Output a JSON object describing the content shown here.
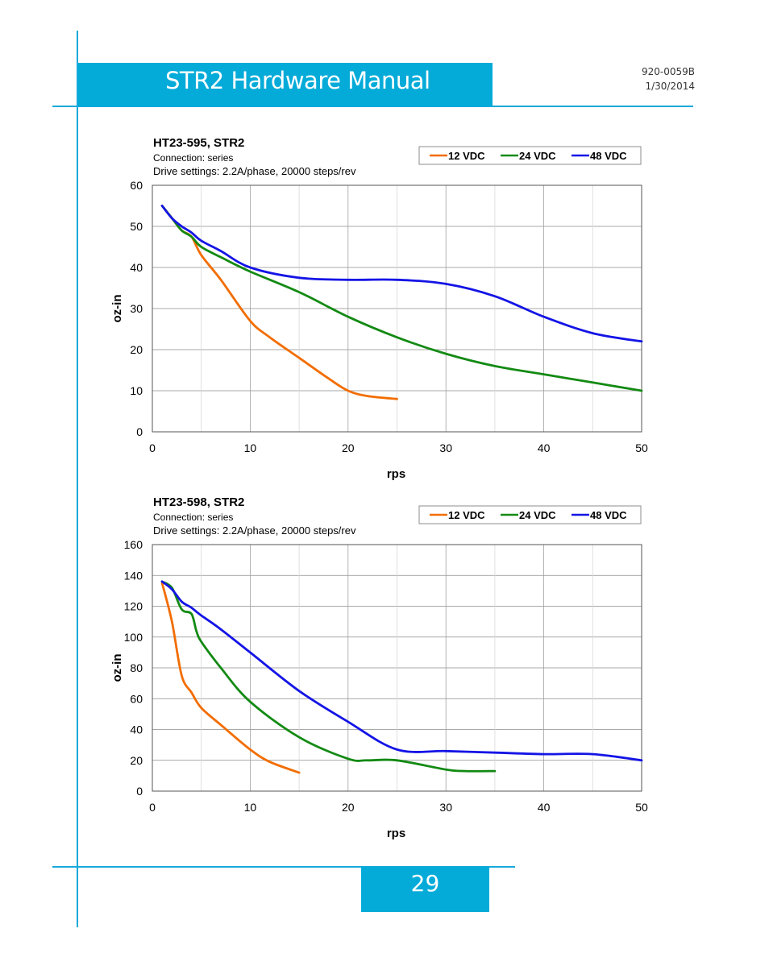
{
  "header": {
    "title": "STR2 Hardware Manual",
    "doc_number": "920-0059B",
    "date": "1/30/2014"
  },
  "footer": {
    "page_number": "29"
  },
  "colors": {
    "accent": "#04abd9",
    "rule": "#16a9da",
    "v12": "#f26d00",
    "v24": "#138a13",
    "v48": "#1414e6"
  },
  "chart_data": [
    {
      "type": "line",
      "title": "HT23-595, STR2",
      "subtitle": "Connection: series",
      "settings": "Drive settings: 2.2A/phase, 20000 steps/rev",
      "xlabel": "rps",
      "ylabel": "oz-in",
      "xlim": [
        0,
        50
      ],
      "ylim": [
        0,
        60
      ],
      "xticks": [
        0,
        10,
        20,
        30,
        40,
        50
      ],
      "yticks": [
        0,
        10,
        20,
        30,
        40,
        50,
        60
      ],
      "grid": true,
      "legend": "top-right",
      "series": [
        {
          "name": "12 VDC",
          "color": "#f26d00",
          "points": [
            [
              1,
              55
            ],
            [
              2,
              52
            ],
            [
              3,
              49
            ],
            [
              4,
              47.5
            ],
            [
              5,
              43
            ],
            [
              7,
              37
            ],
            [
              10,
              27
            ],
            [
              12,
              23
            ],
            [
              15,
              18
            ],
            [
              18,
              13
            ],
            [
              20,
              10
            ],
            [
              22,
              8.7
            ],
            [
              25,
              8
            ]
          ]
        },
        {
          "name": "24 VDC",
          "color": "#138a13",
          "points": [
            [
              1,
              55
            ],
            [
              2,
              52
            ],
            [
              3,
              49
            ],
            [
              4,
              47.5
            ],
            [
              5,
              45
            ],
            [
              7,
              42.5
            ],
            [
              10,
              39
            ],
            [
              15,
              34
            ],
            [
              20,
              28
            ],
            [
              25,
              23
            ],
            [
              30,
              19
            ],
            [
              35,
              16
            ],
            [
              40,
              14
            ],
            [
              45,
              12
            ],
            [
              50,
              10
            ]
          ]
        },
        {
          "name": "48 VDC",
          "color": "#1414e6",
          "points": [
            [
              1,
              55
            ],
            [
              2,
              52
            ],
            [
              3,
              50
            ],
            [
              4,
              48.5
            ],
            [
              5,
              46.5
            ],
            [
              7,
              44
            ],
            [
              10,
              40
            ],
            [
              15,
              37.5
            ],
            [
              20,
              37
            ],
            [
              25,
              37
            ],
            [
              30,
              36
            ],
            [
              35,
              33
            ],
            [
              40,
              28
            ],
            [
              45,
              24
            ],
            [
              50,
              22
            ]
          ]
        }
      ]
    },
    {
      "type": "line",
      "title": "HT23-598, STR2",
      "subtitle": "Connection: series",
      "settings": "Drive settings: 2.2A/phase, 20000 steps/rev",
      "xlabel": "rps",
      "ylabel": "oz-in",
      "xlim": [
        0,
        50
      ],
      "ylim": [
        0,
        160
      ],
      "xticks": [
        0,
        10,
        20,
        30,
        40,
        50
      ],
      "yticks": [
        0,
        20,
        40,
        60,
        80,
        100,
        120,
        140,
        160
      ],
      "grid": true,
      "legend": "top-right",
      "series": [
        {
          "name": "12 VDC",
          "color": "#f26d00",
          "points": [
            [
              1,
              135
            ],
            [
              2,
              110
            ],
            [
              3,
              75
            ],
            [
              4,
              64
            ],
            [
              5,
              54
            ],
            [
              7,
              43
            ],
            [
              10,
              27
            ],
            [
              12,
              19
            ],
            [
              15,
              12
            ]
          ]
        },
        {
          "name": "24 VDC",
          "color": "#138a13",
          "points": [
            [
              1,
              136
            ],
            [
              2,
              132
            ],
            [
              3,
              118
            ],
            [
              4,
              115
            ],
            [
              4.5,
              104
            ],
            [
              5,
              97
            ],
            [
              7,
              80
            ],
            [
              10,
              58
            ],
            [
              15,
              35
            ],
            [
              20,
              21
            ],
            [
              22,
              20
            ],
            [
              25,
              20
            ],
            [
              30,
              14
            ],
            [
              32,
              13
            ],
            [
              35,
              13
            ]
          ]
        },
        {
          "name": "48 VDC",
          "color": "#1414e6",
          "points": [
            [
              1,
              136
            ],
            [
              2,
              131
            ],
            [
              3,
              123
            ],
            [
              4,
              119
            ],
            [
              5,
              114
            ],
            [
              7,
              105
            ],
            [
              10,
              90
            ],
            [
              15,
              65
            ],
            [
              20,
              45
            ],
            [
              25,
              27
            ],
            [
              30,
              26
            ],
            [
              35,
              25
            ],
            [
              40,
              24
            ],
            [
              45,
              24
            ],
            [
              50,
              20
            ]
          ]
        }
      ]
    }
  ]
}
